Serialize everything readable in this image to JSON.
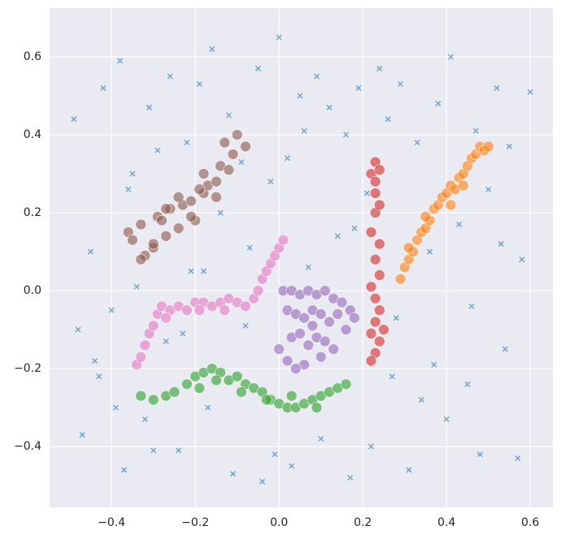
{
  "chart_data": {
    "type": "scatter",
    "xlim": [
      -0.548,
      0.654
    ],
    "ylim": [
      -0.556,
      0.725
    ],
    "xticks": [
      {
        "value": -0.4,
        "label": "−0.4"
      },
      {
        "value": -0.2,
        "label": "−0.2"
      },
      {
        "value": 0,
        "label": "0.0"
      },
      0.2,
      0.4,
      0.6
    ],
    "yticks": [
      {
        "value": -0.4,
        "label": "−0.4"
      },
      {
        "value": -0.2,
        "label": "−0.2"
      },
      {
        "value": 0,
        "label": "0.0"
      },
      0.2,
      0.4,
      0.6
    ],
    "grid": true,
    "series": [
      {
        "color": "#1f77b4",
        "marker": "x",
        "x": [
          -0.49,
          -0.47,
          -0.45,
          -0.43,
          -0.42,
          -0.4,
          -0.38,
          -0.37,
          -0.35,
          -0.34,
          -0.32,
          -0.31,
          -0.29,
          -0.27,
          -0.26,
          -0.24,
          -0.22,
          -0.21,
          -0.19,
          -0.17,
          -0.16,
          -0.14,
          -0.12,
          -0.11,
          -0.09,
          -0.07,
          -0.05,
          -0.04,
          -0.02,
          0,
          0.02,
          0.03,
          0.05,
          0.07,
          0.09,
          0.1,
          0.12,
          0.14,
          0.16,
          0.17,
          0.19,
          0.21,
          0.22,
          0.24,
          0.26,
          0.27,
          0.29,
          0.31,
          0.33,
          0.34,
          0.36,
          0.38,
          0.4,
          0.41,
          0.43,
          0.45,
          0.47,
          0.48,
          0.5,
          0.52,
          0.54,
          0.55,
          0.57,
          0.58,
          0.6,
          -0.44,
          -0.39,
          -0.3,
          -0.18,
          -0.08,
          0.06,
          0.18,
          0.28,
          0.37,
          0.46,
          0.53,
          -0.48,
          -0.36,
          -0.23,
          -0.01
        ],
        "y": [
          0.44,
          -0.37,
          0.1,
          -0.22,
          0.52,
          -0.05,
          0.59,
          -0.46,
          0.3,
          0.01,
          -0.33,
          0.47,
          0.36,
          -0.13,
          0.55,
          -0.41,
          0.38,
          0.05,
          0.53,
          -0.3,
          0.62,
          0.2,
          0.45,
          -0.47,
          0.33,
          0.11,
          0.57,
          -0.49,
          0.28,
          0.65,
          0.34,
          -0.45,
          0.5,
          0.06,
          0.55,
          -0.38,
          0.47,
          0.14,
          0.4,
          -0.48,
          0.52,
          0.25,
          -0.4,
          0.57,
          0.44,
          -0.22,
          0.53,
          -0.46,
          0.38,
          -0.28,
          0.1,
          0.48,
          -0.33,
          0.6,
          0.17,
          -0.24,
          0.41,
          -0.42,
          0.26,
          0.52,
          -0.15,
          0.37,
          -0.43,
          0.08,
          0.51,
          -0.18,
          -0.3,
          -0.41,
          0.05,
          -0.09,
          0.41,
          0.16,
          -0.07,
          -0.19,
          -0.04,
          0.12,
          -0.1,
          0.26,
          -0.11,
          -0.42
        ]
      },
      {
        "color": "#8c564b",
        "marker": "o",
        "x": [
          -0.36,
          -0.35,
          -0.33,
          -0.32,
          -0.3,
          -0.29,
          -0.27,
          -0.26,
          -0.24,
          -0.23,
          -0.21,
          -0.2,
          -0.18,
          -0.17,
          -0.15,
          -0.14,
          -0.12,
          -0.11,
          -0.1,
          -0.08,
          -0.33,
          -0.3,
          -0.27,
          -0.24,
          -0.21,
          -0.18,
          -0.15,
          -0.13,
          -0.28,
          -0.19
        ],
        "y": [
          0.15,
          0.13,
          0.17,
          0.09,
          0.11,
          0.19,
          0.14,
          0.21,
          0.16,
          0.22,
          0.23,
          0.18,
          0.25,
          0.27,
          0.28,
          0.32,
          0.31,
          0.35,
          0.4,
          0.37,
          0.08,
          0.12,
          0.21,
          0.24,
          0.19,
          0.3,
          0.24,
          0.38,
          0.18,
          0.26
        ]
      },
      {
        "color": "#e377c2",
        "marker": "o",
        "x": [
          -0.34,
          -0.33,
          -0.32,
          -0.31,
          -0.3,
          -0.29,
          -0.28,
          -0.26,
          -0.24,
          -0.22,
          -0.2,
          -0.18,
          -0.16,
          -0.14,
          -0.12,
          -0.1,
          -0.08,
          -0.06,
          -0.05,
          -0.04,
          -0.03,
          -0.02,
          -0.01,
          0,
          0.01,
          -0.27,
          -0.19,
          -0.13
        ],
        "y": [
          -0.19,
          -0.17,
          -0.14,
          -0.11,
          -0.09,
          -0.06,
          -0.04,
          -0.05,
          -0.04,
          -0.05,
          -0.03,
          -0.03,
          -0.04,
          -0.03,
          -0.02,
          -0.03,
          -0.04,
          -0.02,
          0,
          0.03,
          0.05,
          0.07,
          0.09,
          0.11,
          0.13,
          -0.07,
          -0.05,
          -0.05
        ]
      },
      {
        "color": "#2ca02c",
        "marker": "o",
        "x": [
          -0.33,
          -0.3,
          -0.27,
          -0.25,
          -0.22,
          -0.2,
          -0.18,
          -0.16,
          -0.14,
          -0.12,
          -0.1,
          -0.08,
          -0.06,
          -0.04,
          -0.02,
          0,
          0.02,
          0.04,
          0.06,
          0.08,
          0.1,
          0.12,
          0.14,
          0.16,
          -0.19,
          -0.15,
          -0.09,
          -0.03,
          0.03,
          0.09
        ],
        "y": [
          -0.27,
          -0.28,
          -0.27,
          -0.26,
          -0.24,
          -0.22,
          -0.21,
          -0.2,
          -0.21,
          -0.23,
          -0.22,
          -0.24,
          -0.25,
          -0.26,
          -0.28,
          -0.29,
          -0.3,
          -0.3,
          -0.29,
          -0.28,
          -0.27,
          -0.26,
          -0.25,
          -0.24,
          -0.25,
          -0.23,
          -0.26,
          -0.28,
          -0.27,
          -0.3
        ]
      },
      {
        "color": "#9467bd",
        "marker": "o",
        "x": [
          0.01,
          0.03,
          0.05,
          0.07,
          0.09,
          0.11,
          0.13,
          0.15,
          0.17,
          0.02,
          0.04,
          0.06,
          0.08,
          0.1,
          0.12,
          0.14,
          0.16,
          0.18,
          0.03,
          0.05,
          0.07,
          0.09,
          0.11,
          0.13,
          0,
          0.02,
          0.06,
          0.1,
          0.04,
          0.08
        ],
        "y": [
          0,
          0,
          -0.01,
          0,
          -0.01,
          0,
          -0.02,
          -0.03,
          -0.05,
          -0.05,
          -0.06,
          -0.07,
          -0.05,
          -0.06,
          -0.08,
          -0.06,
          -0.1,
          -0.07,
          -0.12,
          -0.11,
          -0.14,
          -0.12,
          -0.13,
          -0.15,
          -0.15,
          -0.18,
          -0.19,
          -0.17,
          -0.2,
          -0.09
        ]
      },
      {
        "color": "#d62728",
        "marker": "o",
        "x": [
          0.23,
          0.22,
          0.24,
          0.23,
          0.23,
          0.22,
          0.24,
          0.23,
          0.24,
          0.22,
          0.23,
          0.24,
          0.23,
          0.22,
          0.24,
          0.23,
          0.25,
          0.22,
          0.24,
          0.23
        ],
        "y": [
          0.33,
          0.3,
          0.31,
          0.25,
          0.2,
          0.15,
          0.12,
          0.08,
          0.04,
          0.01,
          -0.02,
          -0.05,
          -0.08,
          -0.11,
          -0.13,
          -0.16,
          -0.1,
          -0.18,
          0.22,
          0.28
        ]
      },
      {
        "color": "#ff7f0e",
        "marker": "o",
        "x": [
          0.29,
          0.3,
          0.31,
          0.32,
          0.33,
          0.34,
          0.35,
          0.36,
          0.37,
          0.38,
          0.39,
          0.4,
          0.41,
          0.42,
          0.43,
          0.44,
          0.45,
          0.46,
          0.47,
          0.48,
          0.49,
          0.5,
          0.31,
          0.35,
          0.41,
          0.44
        ],
        "y": [
          0.03,
          0.06,
          0.08,
          0.1,
          0.13,
          0.15,
          0.16,
          0.18,
          0.21,
          0.22,
          0.24,
          0.25,
          0.27,
          0.26,
          0.29,
          0.3,
          0.32,
          0.34,
          0.35,
          0.37,
          0.36,
          0.37,
          0.11,
          0.19,
          0.22,
          0.27
        ]
      }
    ]
  }
}
